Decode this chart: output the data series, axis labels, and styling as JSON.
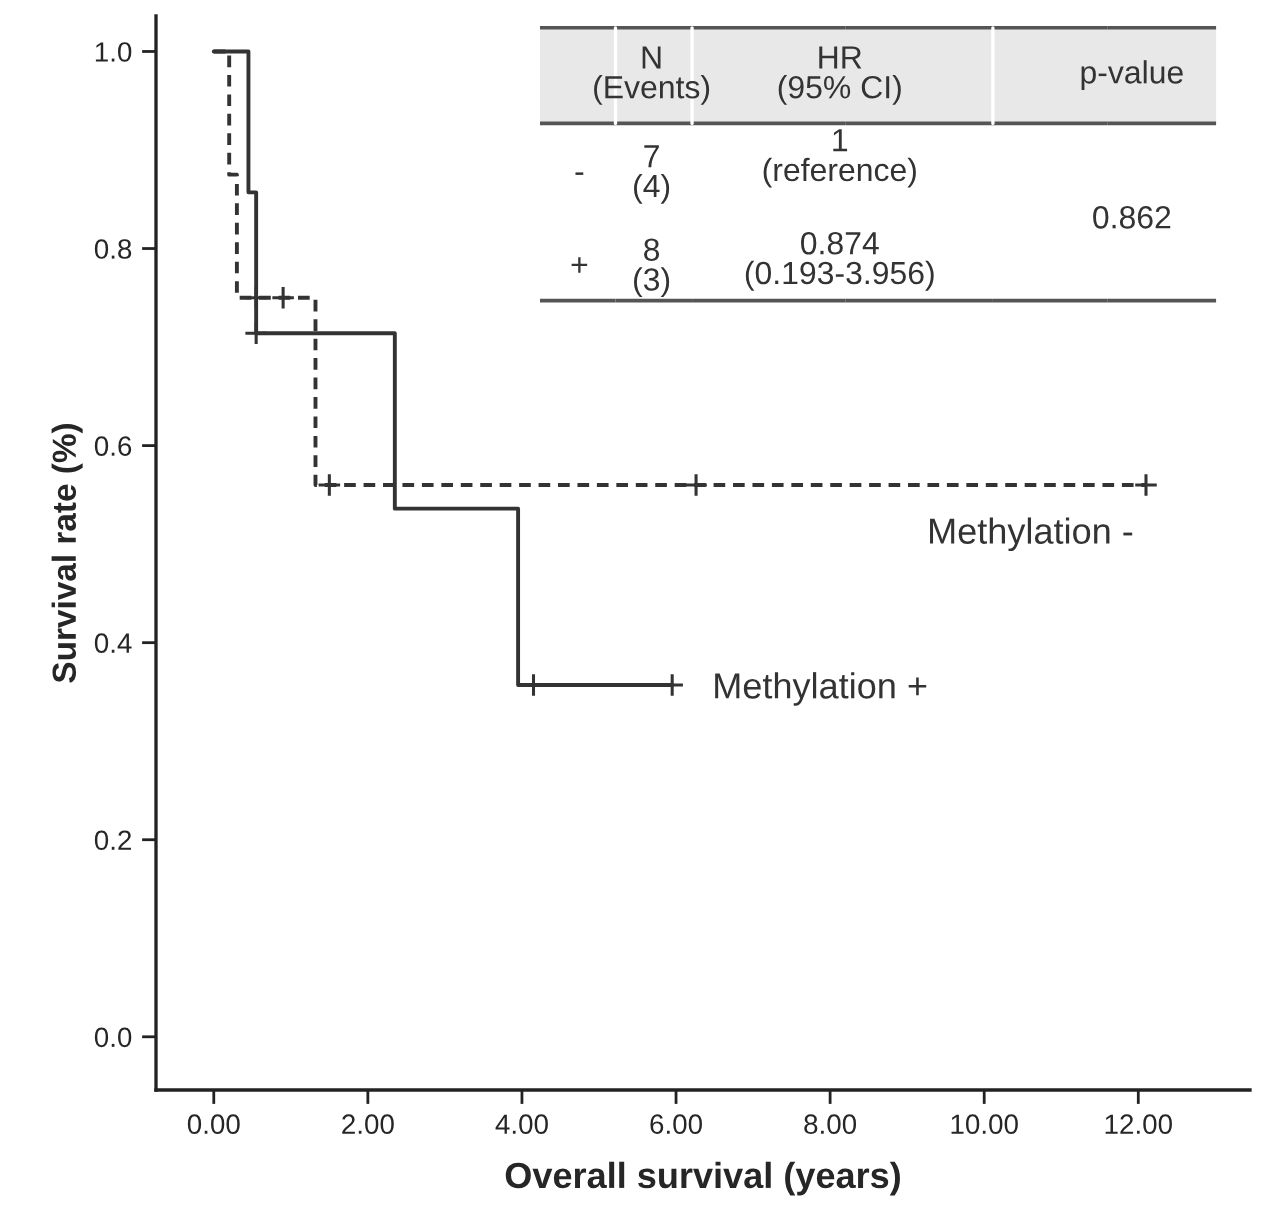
{
  "chart_data": {
    "type": "step",
    "xlabel": "Overall survival (years)",
    "ylabel": "Survival rate (%)",
    "xlim": [
      -0.75,
      13.45
    ],
    "ylim": [
      -0.054,
      1.036
    ],
    "xticks": [
      {
        "value": 0,
        "label": "0.00"
      },
      {
        "value": 2,
        "label": "2.00"
      },
      {
        "value": 4,
        "label": "4.00"
      },
      {
        "value": 6,
        "label": "6.00"
      },
      {
        "value": 8,
        "label": "8.00"
      },
      {
        "value": 10,
        "label": "10.00"
      },
      {
        "value": 12,
        "label": "12.00"
      }
    ],
    "yticks": [
      {
        "value": 0,
        "label": "0.0"
      },
      {
        "value": 0.2,
        "label": "0.2"
      },
      {
        "value": 0.4,
        "label": "0.4"
      },
      {
        "value": 0.6,
        "label": "0.6"
      },
      {
        "value": 0.8,
        "label": "0.8"
      },
      {
        "value": 1.0,
        "label": "1.0"
      }
    ],
    "grid": false,
    "legend": false,
    "series": [
      {
        "name": "Methylation -",
        "color": "#333333",
        "line_style": "dashed",
        "marker": "none",
        "x": [
          0,
          0.2,
          0.3,
          1.32,
          12.1
        ],
        "values": [
          1.0,
          0.875,
          0.75,
          0.56,
          0.56
        ]
      },
      {
        "name": "Methylation +",
        "color": "#333333",
        "line_style": "solid",
        "marker": "none",
        "x": [
          0,
          0.45,
          0.55,
          2.35,
          3.95,
          5.95
        ],
        "values": [
          1.0,
          0.857,
          0.714,
          0.536,
          0.357,
          0.357
        ]
      },
      {
        "type": "scatter",
        "color": "#333333",
        "marker": "cross",
        "x": [
          0.55,
          0.9,
          1.5,
          6.26,
          12.1
        ],
        "values": [
          0.75,
          0.75,
          0.56,
          0.56,
          0.56
        ]
      },
      {
        "type": "scatter",
        "color": "#333333",
        "marker": "cross",
        "x": [
          0.55,
          4.15,
          5.95
        ],
        "values": [
          0.714,
          0.357,
          0.357
        ]
      }
    ],
    "annotations": [
      "N\n(Events)",
      "HR\n(95% CI)",
      "p-value",
      "-",
      "7\n(4)",
      "1\n(reference)",
      "+",
      "8\n(3)",
      "0.874\n(0.193-3.956)",
      "0.862"
    ]
  }
}
